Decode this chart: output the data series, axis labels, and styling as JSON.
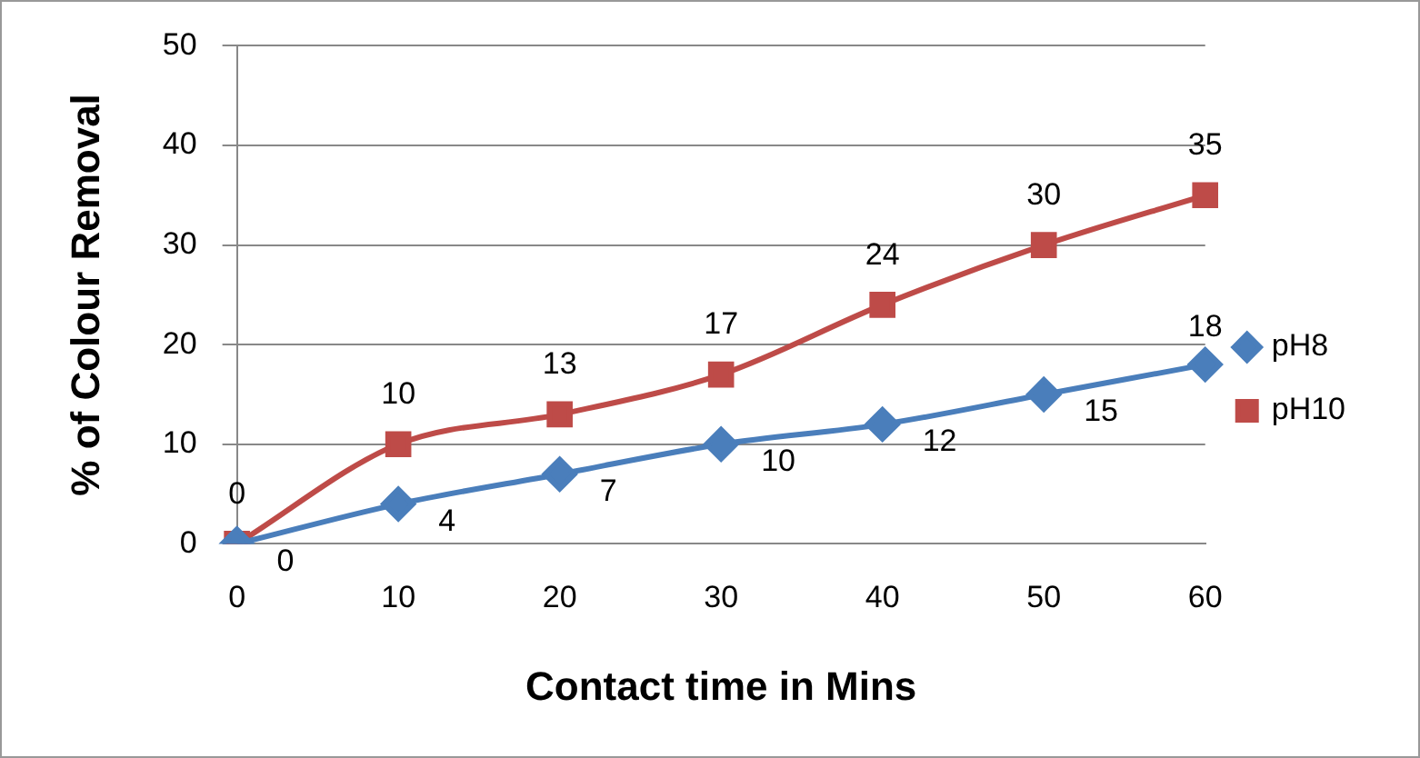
{
  "chart_data": {
    "type": "line",
    "xlabel": "Contact time in Mins",
    "ylabel": "% of Colour Removal",
    "categories": [
      "0",
      "10",
      "20",
      "30",
      "40",
      "50",
      "60"
    ],
    "series": [
      {
        "name": "pH8",
        "color": "#4a7ebb",
        "marker": "diamond",
        "values": [
          0,
          4,
          7,
          10,
          12,
          15,
          18
        ]
      },
      {
        "name": "pH10",
        "color": "#be4b48",
        "marker": "square",
        "values": [
          0,
          10,
          13,
          17,
          24,
          30,
          35
        ]
      }
    ],
    "ylim": [
      0,
      50
    ],
    "yticks": [
      0,
      10,
      20,
      30,
      40,
      50
    ],
    "grid": "y",
    "legend": "right",
    "data_labels": true,
    "line_style": "solid"
  }
}
